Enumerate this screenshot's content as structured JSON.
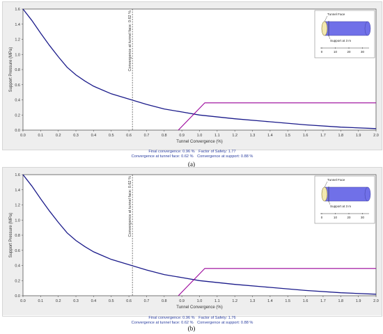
{
  "chart_data": [
    {
      "type": "line",
      "xlabel": "Tunnel Convergence (%)",
      "ylabel": "Support Pressure (MPa)",
      "xlim": [
        0.0,
        2.0
      ],
      "ylim": [
        0.0,
        1.6
      ],
      "xticks": [
        "0.0",
        "0.1",
        "0.2",
        "0.3",
        "0.4",
        "0.5",
        "0.6",
        "0.7",
        "0.8",
        "0.9",
        "1.0",
        "1.1",
        "1.2",
        "1.3",
        "1.4",
        "1.5",
        "1.6",
        "1.7",
        "1.8",
        "1.9",
        "2.0"
      ],
      "yticks": [
        "0.0",
        "0.2",
        "0.4",
        "0.6",
        "0.8",
        "1.0",
        "1.2",
        "1.4",
        "1.6"
      ],
      "grid": false,
      "series": [
        {
          "role": "ground-reaction",
          "color": "#1a1a8a",
          "x": [
            0.0,
            0.05,
            0.1,
            0.15,
            0.2,
            0.25,
            0.3,
            0.35,
            0.4,
            0.45,
            0.5,
            0.6,
            0.7,
            0.8,
            0.9,
            1.0,
            1.2,
            1.4,
            1.6,
            1.8,
            2.0
          ],
          "y": [
            1.6,
            1.45,
            1.28,
            1.12,
            0.97,
            0.83,
            0.73,
            0.65,
            0.58,
            0.53,
            0.48,
            0.41,
            0.34,
            0.28,
            0.24,
            0.2,
            0.15,
            0.11,
            0.07,
            0.04,
            0.02
          ]
        },
        {
          "role": "support-reaction",
          "color": "#990099",
          "x": [
            0.88,
            1.03,
            2.0
          ],
          "y": [
            0.0,
            0.36,
            0.36
          ]
        }
      ],
      "annotations": [
        {
          "text": "Convergence at tunnel face: 0.62 %",
          "x": 0.62
        }
      ],
      "inset": {
        "labels": [
          "Tunnel Face",
          "Support at 3 m"
        ],
        "scale_ticks": [
          "0",
          "10",
          "20",
          "30"
        ]
      },
      "info_lines": [
        [
          "Final convergence: 0.96 %",
          "Factor of Safety:  1.77"
        ],
        [
          "Convergence at tunnel face: 0.62 %",
          "Convergence at support: 0.88 %"
        ]
      ],
      "caption": "(a)"
    },
    {
      "type": "line",
      "xlabel": "Tunnel Convergence (%)",
      "ylabel": "Support Pressure (MPa)",
      "xlim": [
        0.0,
        2.0
      ],
      "ylim": [
        0.0,
        1.6
      ],
      "xticks": [
        "0.0",
        "0.1",
        "0.2",
        "0.3",
        "0.4",
        "0.5",
        "0.6",
        "0.7",
        "0.8",
        "0.9",
        "1.0",
        "1.1",
        "1.2",
        "1.3",
        "1.4",
        "1.5",
        "1.6",
        "1.7",
        "1.8",
        "1.9",
        "2.0"
      ],
      "yticks": [
        "0.0",
        "0.2",
        "0.4",
        "0.6",
        "0.8",
        "1.0",
        "1.2",
        "1.4",
        "1.6"
      ],
      "grid": false,
      "series": [
        {
          "role": "ground-reaction",
          "color": "#1a1a8a",
          "x": [
            0.0,
            0.05,
            0.1,
            0.15,
            0.2,
            0.25,
            0.3,
            0.35,
            0.4,
            0.45,
            0.5,
            0.6,
            0.7,
            0.8,
            0.9,
            1.0,
            1.2,
            1.4,
            1.6,
            1.8,
            2.0
          ],
          "y": [
            1.6,
            1.45,
            1.28,
            1.12,
            0.97,
            0.83,
            0.73,
            0.65,
            0.58,
            0.53,
            0.48,
            0.41,
            0.34,
            0.28,
            0.24,
            0.2,
            0.15,
            0.11,
            0.07,
            0.04,
            0.02
          ]
        },
        {
          "role": "support-reaction",
          "color": "#990099",
          "x": [
            0.88,
            1.03,
            2.0
          ],
          "y": [
            0.0,
            0.36,
            0.36
          ]
        }
      ],
      "annotations": [
        {
          "text": "Convergence at tunnel face: 0.62 %",
          "x": 0.62
        }
      ],
      "inset": {
        "labels": [
          "Tunnel Face",
          "Support at 3 m"
        ],
        "scale_ticks": [
          "0",
          "10",
          "20",
          "30"
        ]
      },
      "info_lines": [
        [
          "Final convergence: 0.96 %",
          "Factor of Safety:  1.76"
        ],
        [
          "Convergence at tunnel face: 0.62 %",
          "Convergence at support: 0.88 %"
        ]
      ],
      "caption": "(b)"
    }
  ]
}
